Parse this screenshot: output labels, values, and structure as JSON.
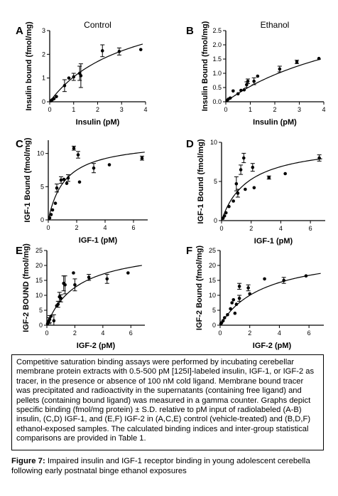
{
  "caption": "Competitive saturation binding assays were performed by incubating cerebellar membrane protein extracts with 0.5-500 pM [125I]-labeled insulin, IGF-1, or IGF-2 as tracer, in the presence or absence of 100 nM cold ligand. Membrane bound tracer was precipitated and radioactivity in the supernatants (containing free ligand) and pellets (containing bound ligand) was measured in a gamma counter. Graphs depict specific binding (fmol/mg protein) ± S.D. relative to pM input of radiolabeled (A-B) insulin, (C,D) IGF-1, and (E,F) IGF-2 in (A,C,E) control (vehicle-treated) and (B,D,F) ethanol-exposed samples. The calculated binding indices and inter-group statistical comparisons are provided in Table 1.",
  "figure_label": "Figure 7:",
  "figure_title": " Impaired insulin and IGF-1 receptor binding in young adolescent cerebella following early postnatal binge ethanol exposures",
  "chart_data": [
    {
      "panel": "A",
      "type": "scatter",
      "title": "Control",
      "xlabel": "Insulin (pM)",
      "ylabel": "Insulin bound (fmol/mg)",
      "xlim": [
        0,
        4
      ],
      "ylim": [
        0,
        3
      ],
      "xticks": [
        0,
        1,
        2,
        3,
        4
      ],
      "yticks": [
        0,
        1,
        2,
        3
      ],
      "points": [
        {
          "x": 0.05,
          "y": 0.04
        },
        {
          "x": 0.1,
          "y": 0.08
        },
        {
          "x": 0.18,
          "y": 0.13
        },
        {
          "x": 0.28,
          "y": 0.22
        },
        {
          "x": 0.62,
          "y": 0.68,
          "err": 0.25
        },
        {
          "x": 0.8,
          "y": 1.0
        },
        {
          "x": 1.0,
          "y": 1.05,
          "err": 0.15
        },
        {
          "x": 1.25,
          "y": 1.2,
          "err": 0.3
        },
        {
          "x": 1.3,
          "y": 1.1,
          "err": 0.5
        },
        {
          "x": 2.2,
          "y": 2.15,
          "err": 0.25
        },
        {
          "x": 2.9,
          "y": 2.12,
          "err": 0.15
        },
        {
          "x": 3.8,
          "y": 2.2
        }
      ],
      "fit": {
        "bmax": 4.5,
        "kd": 3.3
      }
    },
    {
      "panel": "B",
      "type": "scatter",
      "title": "Ethanol",
      "xlabel": "Insulin (pM)",
      "ylabel": "Insulin Bound (fmol/mg)",
      "xlim": [
        0,
        4
      ],
      "ylim": [
        0,
        2.5
      ],
      "xticks": [
        0,
        1,
        2,
        3,
        4
      ],
      "yticks": [
        0.0,
        0.5,
        1.0,
        1.5,
        2.0,
        2.5
      ],
      "points": [
        {
          "x": 0.05,
          "y": 0.04
        },
        {
          "x": 0.1,
          "y": 0.09
        },
        {
          "x": 0.18,
          "y": 0.13
        },
        {
          "x": 0.3,
          "y": 0.38
        },
        {
          "x": 0.5,
          "y": 0.28
        },
        {
          "x": 0.62,
          "y": 0.4
        },
        {
          "x": 0.75,
          "y": 0.42
        },
        {
          "x": 0.85,
          "y": 0.6,
          "err": 0.1
        },
        {
          "x": 0.9,
          "y": 0.72,
          "err": 0.08
        },
        {
          "x": 1.15,
          "y": 0.72,
          "err": 0.12
        },
        {
          "x": 1.3,
          "y": 0.9
        },
        {
          "x": 2.2,
          "y": 1.15,
          "err": 0.1
        },
        {
          "x": 2.9,
          "y": 1.4,
          "err": 0.06
        },
        {
          "x": 3.8,
          "y": 1.52
        }
      ],
      "fit": {
        "bmax": 3.9,
        "kd": 6.2
      }
    },
    {
      "panel": "C",
      "type": "scatter",
      "xlabel": "IGF-1 (pM)",
      "ylabel": "IGF-1 Bound (fmol/mg)",
      "xlim": [
        0,
        7
      ],
      "ylim": [
        0,
        12
      ],
      "xticks": [
        0,
        2,
        4,
        6
      ],
      "yticks": [
        0,
        5,
        10
      ],
      "points": [
        {
          "x": 0.1,
          "y": 0.3
        },
        {
          "x": 0.2,
          "y": 0.8
        },
        {
          "x": 0.3,
          "y": 1.5
        },
        {
          "x": 0.5,
          "y": 2.5
        },
        {
          "x": 0.6,
          "y": 4.8,
          "err": 0.6
        },
        {
          "x": 0.9,
          "y": 6.0,
          "err": 0.5
        },
        {
          "x": 1.1,
          "y": 6.1
        },
        {
          "x": 1.3,
          "y": 5.5
        },
        {
          "x": 1.4,
          "y": 6.3,
          "err": 0.5
        },
        {
          "x": 1.8,
          "y": 10.8,
          "err": 0.3
        },
        {
          "x": 2.1,
          "y": 9.8,
          "err": 0.5
        },
        {
          "x": 3.2,
          "y": 7.8,
          "err": 0.7
        },
        {
          "x": 4.3,
          "y": 8.3
        },
        {
          "x": 6.6,
          "y": 9.3,
          "err": 0.3
        },
        {
          "x": 2.2,
          "y": 5.7
        }
      ],
      "fit": {
        "bmax": 12.0,
        "kd": 1.2
      }
    },
    {
      "panel": "D",
      "type": "scatter",
      "xlabel": "IGF-1 (pM)",
      "ylabel": "IGF-1 Bound (fmol/mg)",
      "xlim": [
        0,
        7
      ],
      "ylim": [
        0,
        10
      ],
      "xticks": [
        0,
        2,
        4,
        6
      ],
      "yticks": [
        0,
        5,
        10
      ],
      "points": [
        {
          "x": 0.1,
          "y": 0.3
        },
        {
          "x": 0.2,
          "y": 0.6
        },
        {
          "x": 0.3,
          "y": 1.0
        },
        {
          "x": 0.5,
          "y": 1.8
        },
        {
          "x": 0.8,
          "y": 2.5
        },
        {
          "x": 1.0,
          "y": 4.7,
          "err": 0.9
        },
        {
          "x": 1.1,
          "y": 3.5,
          "err": 0.5
        },
        {
          "x": 1.3,
          "y": 6.5,
          "err": 0.6
        },
        {
          "x": 1.5,
          "y": 8.0,
          "err": 0.6
        },
        {
          "x": 1.6,
          "y": 4.0
        },
        {
          "x": 2.1,
          "y": 6.8,
          "err": 0.5
        },
        {
          "x": 2.2,
          "y": 4.2
        },
        {
          "x": 3.2,
          "y": 5.5,
          "err": 0.2
        },
        {
          "x": 4.3,
          "y": 6.0
        },
        {
          "x": 6.6,
          "y": 8.0,
          "err": 0.4
        }
      ],
      "fit": {
        "bmax": 10.0,
        "kd": 1.8
      }
    },
    {
      "panel": "E",
      "type": "scatter",
      "xlabel": "IGF-2 (pM)",
      "ylabel": "IGF-2 BOUND (fmol/mg)",
      "xlim": [
        0,
        7
      ],
      "ylim": [
        0,
        25
      ],
      "xticks": [
        0,
        2,
        4,
        6
      ],
      "yticks": [
        0,
        5,
        10,
        15,
        20,
        25
      ],
      "points": [
        {
          "x": 0.05,
          "y": 0.5
        },
        {
          "x": 0.1,
          "y": 1.0
        },
        {
          "x": 0.15,
          "y": 1.5,
          "err": 1.0
        },
        {
          "x": 0.2,
          "y": 2.0,
          "err": 1.2
        },
        {
          "x": 0.3,
          "y": 3.0
        },
        {
          "x": 0.5,
          "y": 1.5,
          "err": 2.0
        },
        {
          "x": 0.7,
          "y": 6.5
        },
        {
          "x": 0.8,
          "y": 7.0,
          "err": 1.0
        },
        {
          "x": 0.9,
          "y": 9.5,
          "err": 1.5
        },
        {
          "x": 1.0,
          "y": 9.0,
          "err": 1.2
        },
        {
          "x": 1.2,
          "y": 14.0,
          "err": 2.5
        },
        {
          "x": 1.3,
          "y": 13.5,
          "err": 3.0
        },
        {
          "x": 1.9,
          "y": 17.5
        },
        {
          "x": 2.0,
          "y": 13.5,
          "err": 2.0
        },
        {
          "x": 3.0,
          "y": 16.0,
          "err": 1.0
        },
        {
          "x": 4.3,
          "y": 15.5,
          "err": 1.5
        },
        {
          "x": 5.8,
          "y": 17.5
        }
      ],
      "fit": {
        "bmax": 26.5,
        "kd": 2.2
      }
    },
    {
      "panel": "F",
      "type": "scatter",
      "xlabel": "IGF-2 (pM)",
      "ylabel": "IGF-2 Bound (fmol/mg)",
      "xlim": [
        0,
        7
      ],
      "ylim": [
        0,
        25
      ],
      "xticks": [
        0,
        2,
        4,
        6
      ],
      "yticks": [
        0,
        5,
        10,
        15,
        20,
        25
      ],
      "points": [
        {
          "x": 0.05,
          "y": 0.5
        },
        {
          "x": 0.1,
          "y": 0.8
        },
        {
          "x": 0.2,
          "y": 1.5
        },
        {
          "x": 0.3,
          "y": 2.5
        },
        {
          "x": 0.5,
          "y": 3.5
        },
        {
          "x": 0.7,
          "y": 5.5
        },
        {
          "x": 0.8,
          "y": 7.5
        },
        {
          "x": 0.9,
          "y": 8.5
        },
        {
          "x": 1.0,
          "y": 4.0
        },
        {
          "x": 1.1,
          "y": 7.0
        },
        {
          "x": 1.3,
          "y": 9.0,
          "err": 1.0
        },
        {
          "x": 1.3,
          "y": 13.0,
          "err": 1.0
        },
        {
          "x": 1.9,
          "y": 12.5,
          "err": 1.0
        },
        {
          "x": 2.0,
          "y": 10.5
        },
        {
          "x": 3.0,
          "y": 15.5
        },
        {
          "x": 4.3,
          "y": 15.0,
          "err": 1.0
        },
        {
          "x": 5.8,
          "y": 16.5
        }
      ],
      "fit": {
        "bmax": 25.0,
        "kd": 3.0
      }
    }
  ]
}
